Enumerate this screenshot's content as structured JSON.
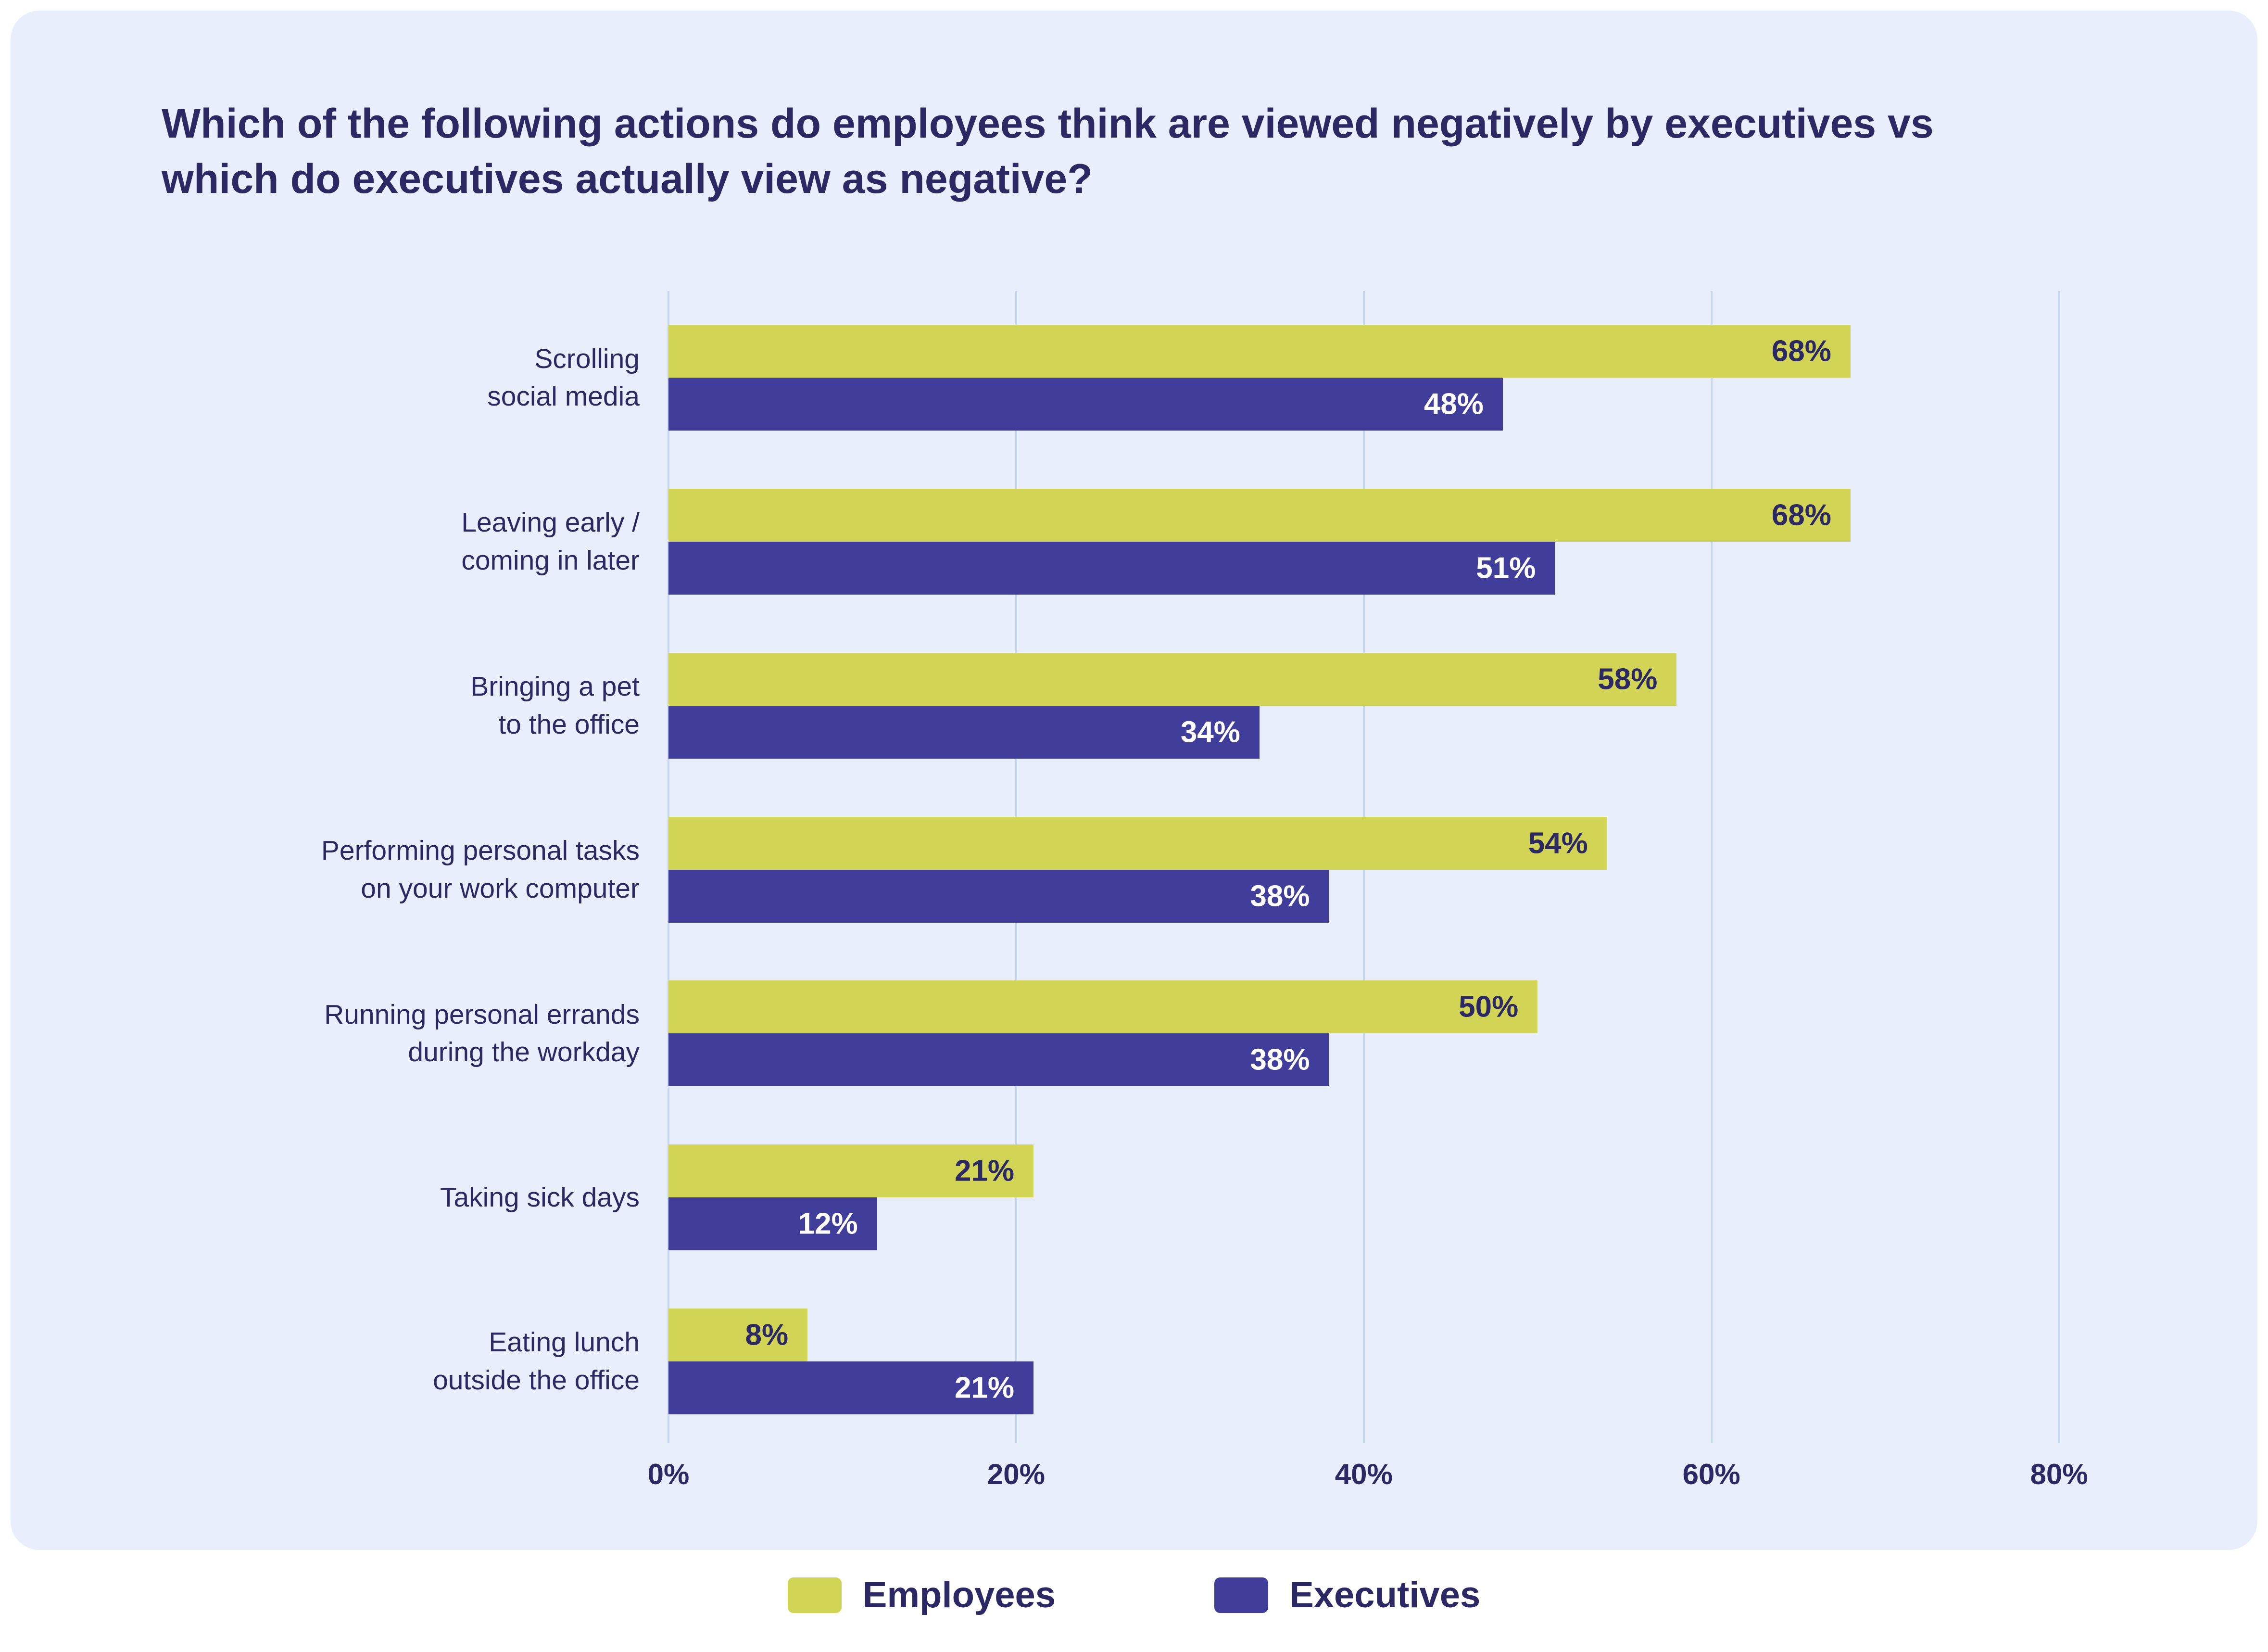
{
  "title": "Which of the following actions do employees think are viewed negatively by executives vs which do executives actually view as negative?",
  "chart_data": {
    "type": "bar",
    "orientation": "horizontal",
    "categories": [
      [
        "Scrolling",
        "social media"
      ],
      [
        "Leaving early /",
        "coming in later"
      ],
      [
        "Bringing a pet",
        "to the office"
      ],
      [
        "Performing personal tasks",
        "on your work computer"
      ],
      [
        "Running personal errands",
        "during the workday"
      ],
      [
        "Taking sick days"
      ],
      [
        "Eating lunch",
        "outside the office"
      ]
    ],
    "series": [
      {
        "name": "Employees",
        "color": "#d2d455",
        "label_color": "#2b2864",
        "values": [
          68,
          68,
          58,
          54,
          50,
          21,
          8
        ]
      },
      {
        "name": "Executives",
        "color": "#413e9b",
        "label_color": "#ffffff",
        "values": [
          48,
          51,
          34,
          38,
          38,
          12,
          21
        ]
      }
    ],
    "x_ticks": [
      "0%",
      "20%",
      "40%",
      "60%",
      "80%"
    ],
    "x_tick_values": [
      0,
      20,
      40,
      60,
      80
    ],
    "xlim": [
      0,
      83
    ],
    "value_suffix": "%",
    "grid": true,
    "legend_position": "bottom"
  },
  "legend": {
    "items": [
      {
        "label": "Employees",
        "color": "#d2d455"
      },
      {
        "label": "Executives",
        "color": "#413e9b"
      }
    ]
  },
  "colors": {
    "card_background": "#e8eefb",
    "page_background": "#ffffff",
    "text_navy": "#2b2864",
    "gridline": "#c5d6f2"
  }
}
